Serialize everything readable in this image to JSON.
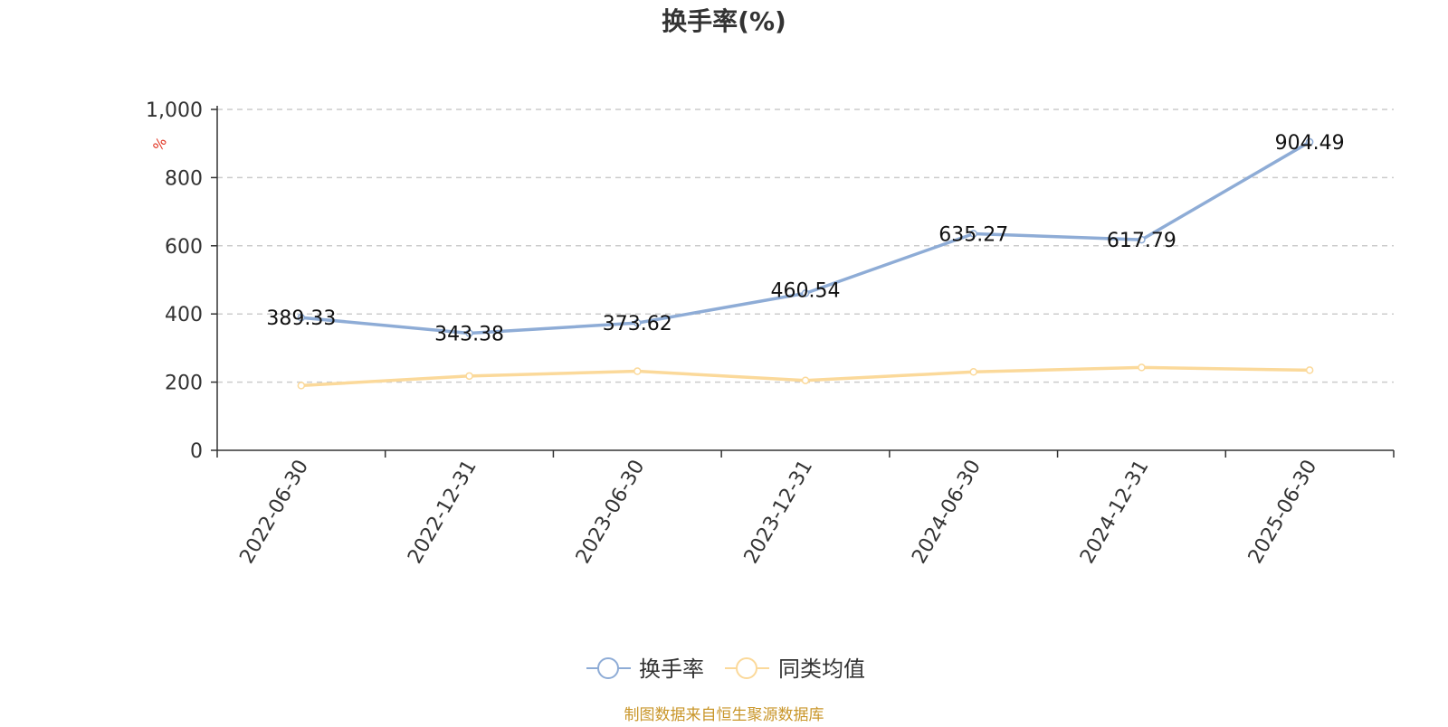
{
  "chart_data": {
    "type": "line",
    "title": "换手率(%)",
    "ylabel": "%",
    "xlabel": "",
    "categories": [
      "2022-06-30",
      "2022-12-31",
      "2023-06-30",
      "2023-12-31",
      "2024-06-30",
      "2024-12-31",
      "2025-06-30"
    ],
    "ylim": [
      0,
      1000
    ],
    "yticks": [
      0,
      200,
      400,
      600,
      800,
      1000
    ],
    "ytick_labels": [
      "0",
      "200",
      "400",
      "600",
      "800",
      "1,000"
    ],
    "grid": true,
    "legend_position": "bottom-center",
    "series": [
      {
        "name": "换手率",
        "color": "#8eacd6",
        "values": [
          389.33,
          343.38,
          373.62,
          460.54,
          635.27,
          617.79,
          904.49
        ],
        "data_labels": [
          "389.33",
          "343.38",
          "373.62",
          "460.54",
          "635.27",
          "617.79",
          "904.49"
        ]
      },
      {
        "name": "同类均值",
        "color": "#fbd99a",
        "values": [
          190,
          218,
          232,
          205,
          230,
          243,
          235
        ]
      }
    ],
    "source_note": "制图数据来自恒生聚源数据库",
    "source_color": "#c9962a",
    "ylabel_color": "#e0301e",
    "axis_color": "#333333",
    "grid_color": "#cccccc"
  }
}
